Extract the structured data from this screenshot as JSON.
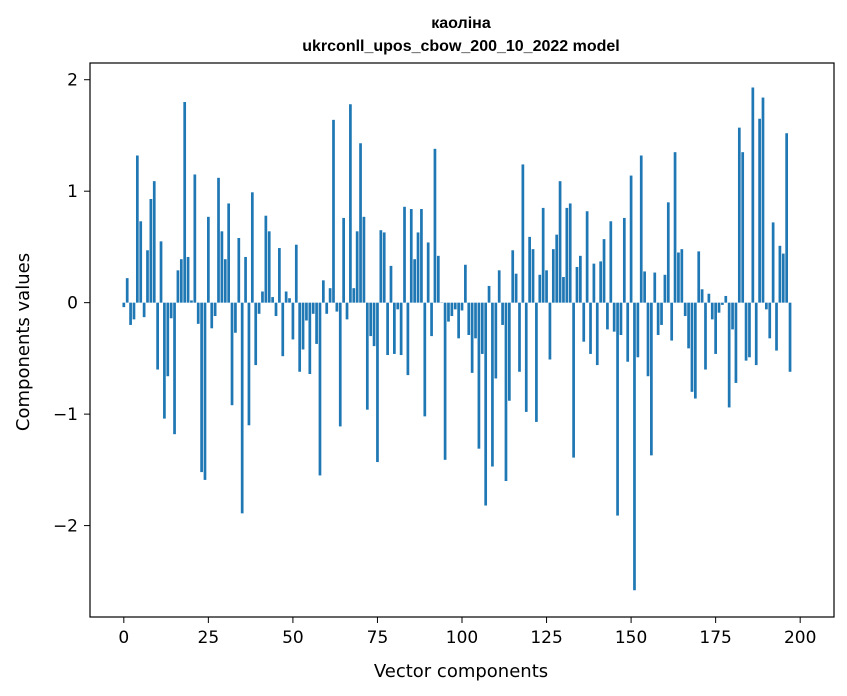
{
  "chart_data": {
    "type": "bar",
    "title_line1": "каоліна",
    "title_line2": "ukrconll_upos_cbow_200_10_2022 model",
    "xlabel": "Vector components",
    "ylabel": "Components values",
    "xlim": [
      -10,
      210
    ],
    "ylim": [
      -2.82,
      2.15
    ],
    "xticks": [
      0,
      25,
      50,
      75,
      100,
      125,
      150,
      175,
      200
    ],
    "xtick_labels": [
      "0",
      "25",
      "50",
      "75",
      "100",
      "125",
      "150",
      "175",
      "200"
    ],
    "yticks": [
      2,
      1,
      0,
      -1,
      -2
    ],
    "ytick_labels": [
      "2",
      "1",
      "0",
      "−1",
      "−2"
    ],
    "grid": false,
    "bar_color": "#1f77b4",
    "values": [
      -0.04,
      0.22,
      -0.2,
      -0.15,
      1.32,
      0.73,
      -0.13,
      0.47,
      0.93,
      1.09,
      -0.6,
      0.55,
      -1.04,
      -0.66,
      -0.14,
      -1.18,
      0.29,
      0.39,
      1.8,
      0.41,
      0.02,
      1.15,
      -0.19,
      -1.52,
      -1.59,
      0.77,
      -0.23,
      -0.12,
      1.12,
      0.64,
      0.39,
      0.89,
      -0.92,
      -0.27,
      0.58,
      -1.89,
      0.41,
      -1.1,
      0.99,
      -0.56,
      -0.1,
      0.1,
      0.78,
      0.64,
      0.05,
      -0.12,
      0.49,
      -0.48,
      0.1,
      0.04,
      -0.33,
      0.52,
      -0.62,
      -0.42,
      -0.16,
      -0.64,
      -0.1,
      -0.37,
      -1.55,
      0.2,
      -0.1,
      0.13,
      1.64,
      -0.08,
      -1.11,
      0.76,
      -0.15,
      1.78,
      0.13,
      0.64,
      1.43,
      0.77,
      -0.96,
      -0.3,
      -0.39,
      -1.43,
      0.65,
      0.63,
      -0.47,
      0.33,
      -0.46,
      -0.06,
      -0.47,
      0.86,
      -0.65,
      0.84,
      0.39,
      0.63,
      0.84,
      -1.02,
      0.54,
      -0.3,
      1.38,
      0.42,
      0.0,
      -1.41,
      -0.17,
      -0.12,
      -0.06,
      -0.32,
      -0.07,
      0.34,
      -0.29,
      -0.63,
      -0.32,
      -1.31,
      -0.46,
      -1.82,
      0.15,
      -1.47,
      -0.68,
      0.29,
      -0.2,
      -1.6,
      -0.88,
      0.47,
      0.26,
      -0.62,
      1.24,
      -0.98,
      0.59,
      0.48,
      -1.07,
      0.25,
      0.85,
      0.29,
      -0.51,
      0.48,
      0.61,
      1.09,
      0.23,
      0.85,
      0.89,
      -1.39,
      0.32,
      0.42,
      -0.35,
      0.82,
      -0.46,
      0.35,
      -0.56,
      0.37,
      0.57,
      -0.24,
      0.73,
      -0.26,
      -1.91,
      -0.29,
      0.76,
      -0.53,
      1.14,
      -2.58,
      -0.49,
      1.32,
      0.28,
      -0.66,
      -1.37,
      0.27,
      -0.29,
      -0.2,
      0.25,
      0.9,
      -0.34,
      1.35,
      0.45,
      0.48,
      -0.12,
      -0.41,
      -0.8,
      -0.86,
      0.46,
      0.12,
      -0.6,
      0.08,
      -0.15,
      -0.46,
      -0.09,
      -0.02,
      0.06,
      -0.94,
      -0.24,
      -0.72,
      1.57,
      1.35,
      -0.52,
      -0.49,
      1.93,
      -0.56,
      1.65,
      1.84,
      -0.06,
      -0.32,
      0.72,
      -0.43,
      0.51,
      0.44,
      1.52,
      -0.62
    ]
  }
}
